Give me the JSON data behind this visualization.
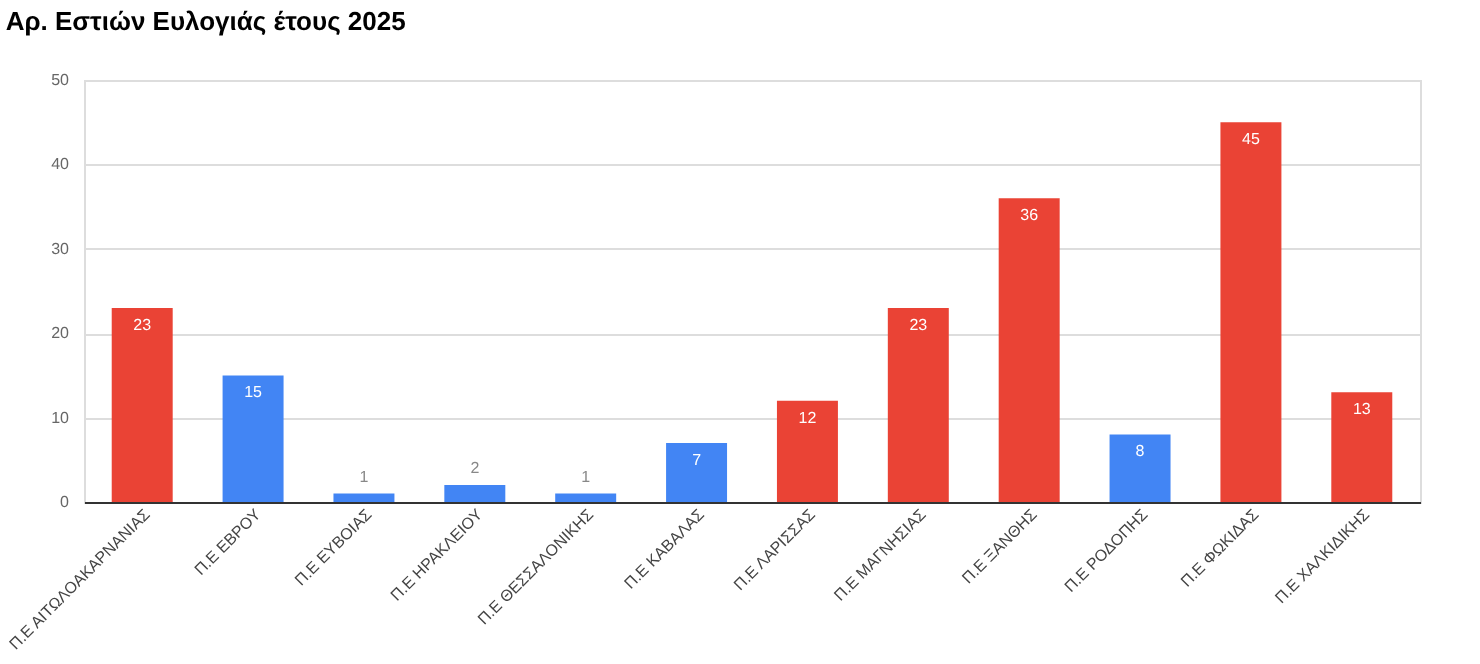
{
  "chart_data": {
    "type": "bar",
    "title": "Αρ. Εστιών Ευλογιάς έτους 2025",
    "categories": [
      "Π.Ε ΑΙΤΩΛΟΑΚΑΡΝΑΝΙΑΣ",
      "Π.Ε ΕΒΡΟΥ",
      "Π.Ε ΕΥΒΟΙΑΣ",
      "Π.Ε ΗΡΑΚΛΕΙΟΥ",
      "Π.Ε ΘΕΣΣΑΛΟΝΙΚΗΣ",
      "Π.Ε ΚΑΒΑΛΑΣ",
      "Π.Ε ΛΑΡΙΣΣΑΣ",
      "Π.Ε ΜΑΓΝΗΣΙΑΣ",
      "Π.Ε ΞΑΝΘΗΣ",
      "Π.Ε ΡΟΔΟΠΗΣ",
      "Π.Ε ΦΩΚΙΔΑΣ",
      "Π.Ε ΧΑΛΚΙΔΙΚΗΣ"
    ],
    "values": [
      23,
      15,
      1,
      2,
      1,
      7,
      12,
      23,
      36,
      8,
      45,
      13
    ],
    "colors": [
      "#ea4335",
      "#4285f4",
      "#4285f4",
      "#4285f4",
      "#4285f4",
      "#4285f4",
      "#ea4335",
      "#ea4335",
      "#ea4335",
      "#4285f4",
      "#ea4335",
      "#ea4335"
    ],
    "ylim": [
      0,
      50
    ],
    "yticks": [
      0,
      10,
      20,
      30,
      40,
      50
    ],
    "grid": "y",
    "data_labels": true
  }
}
